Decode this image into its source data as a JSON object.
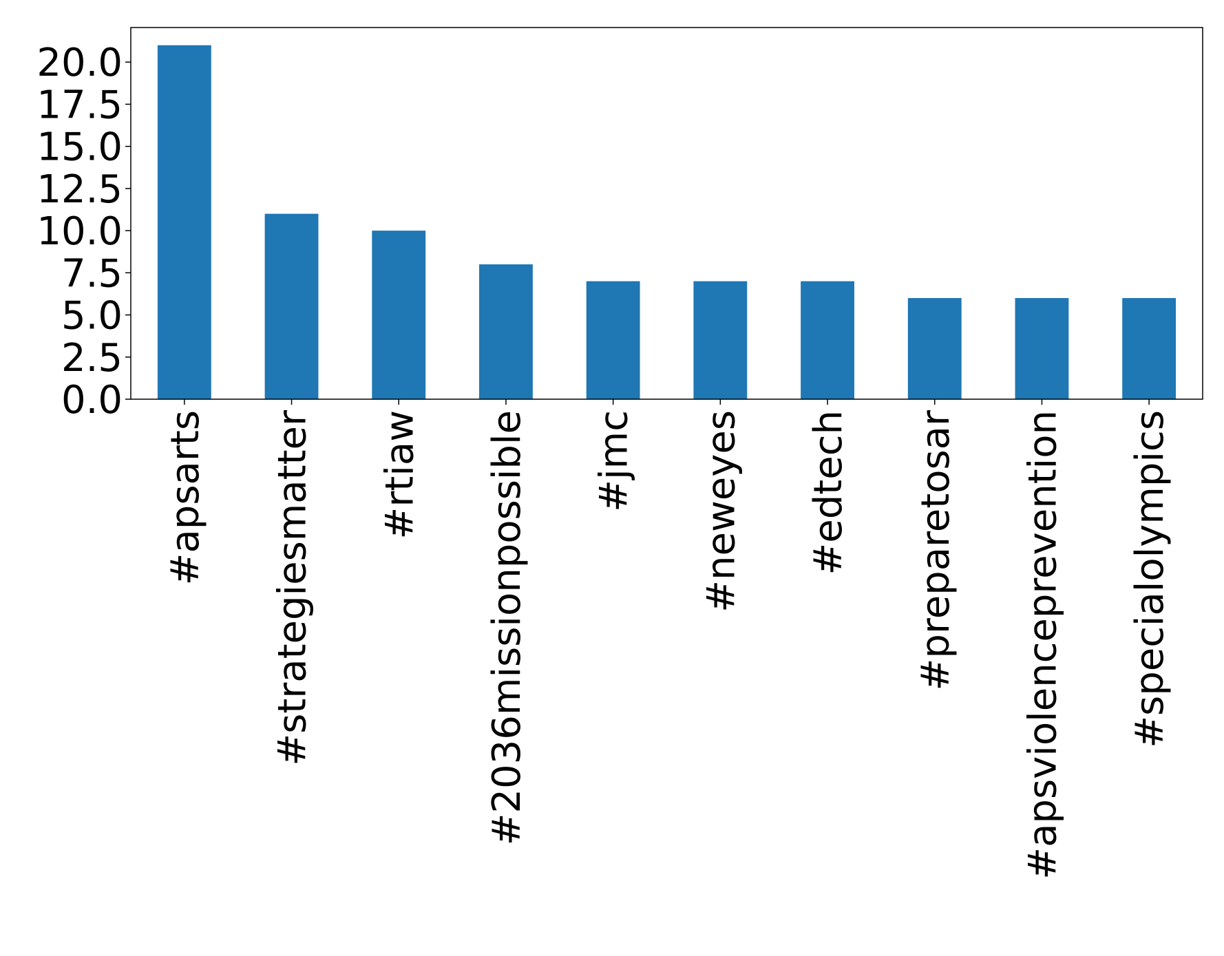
{
  "chart_data": {
    "type": "bar",
    "categories": [
      "#apsarts",
      "#strategiesmatter",
      "#rtiaw",
      "#2036missionpossible",
      "#jmc",
      "#neweyes",
      "#edtech",
      "#preparetosar",
      "#apsviolenceprevention",
      "#specialolympics"
    ],
    "values": [
      21,
      11,
      10,
      8,
      7,
      7,
      7,
      6,
      6,
      6
    ],
    "title": "",
    "xlabel": "",
    "ylabel": "",
    "ylim": [
      0,
      22.05
    ],
    "yticks": [
      0,
      2.5,
      5,
      7.5,
      10,
      12.5,
      15,
      17.5,
      20
    ],
    "ytick_labels": [
      "0.0",
      "2.5",
      "5.0",
      "7.5",
      "10.0",
      "12.5",
      "15.0",
      "17.5",
      "20.0"
    ],
    "grid": false,
    "legend": "none",
    "bar_color": "#1f77b4"
  }
}
